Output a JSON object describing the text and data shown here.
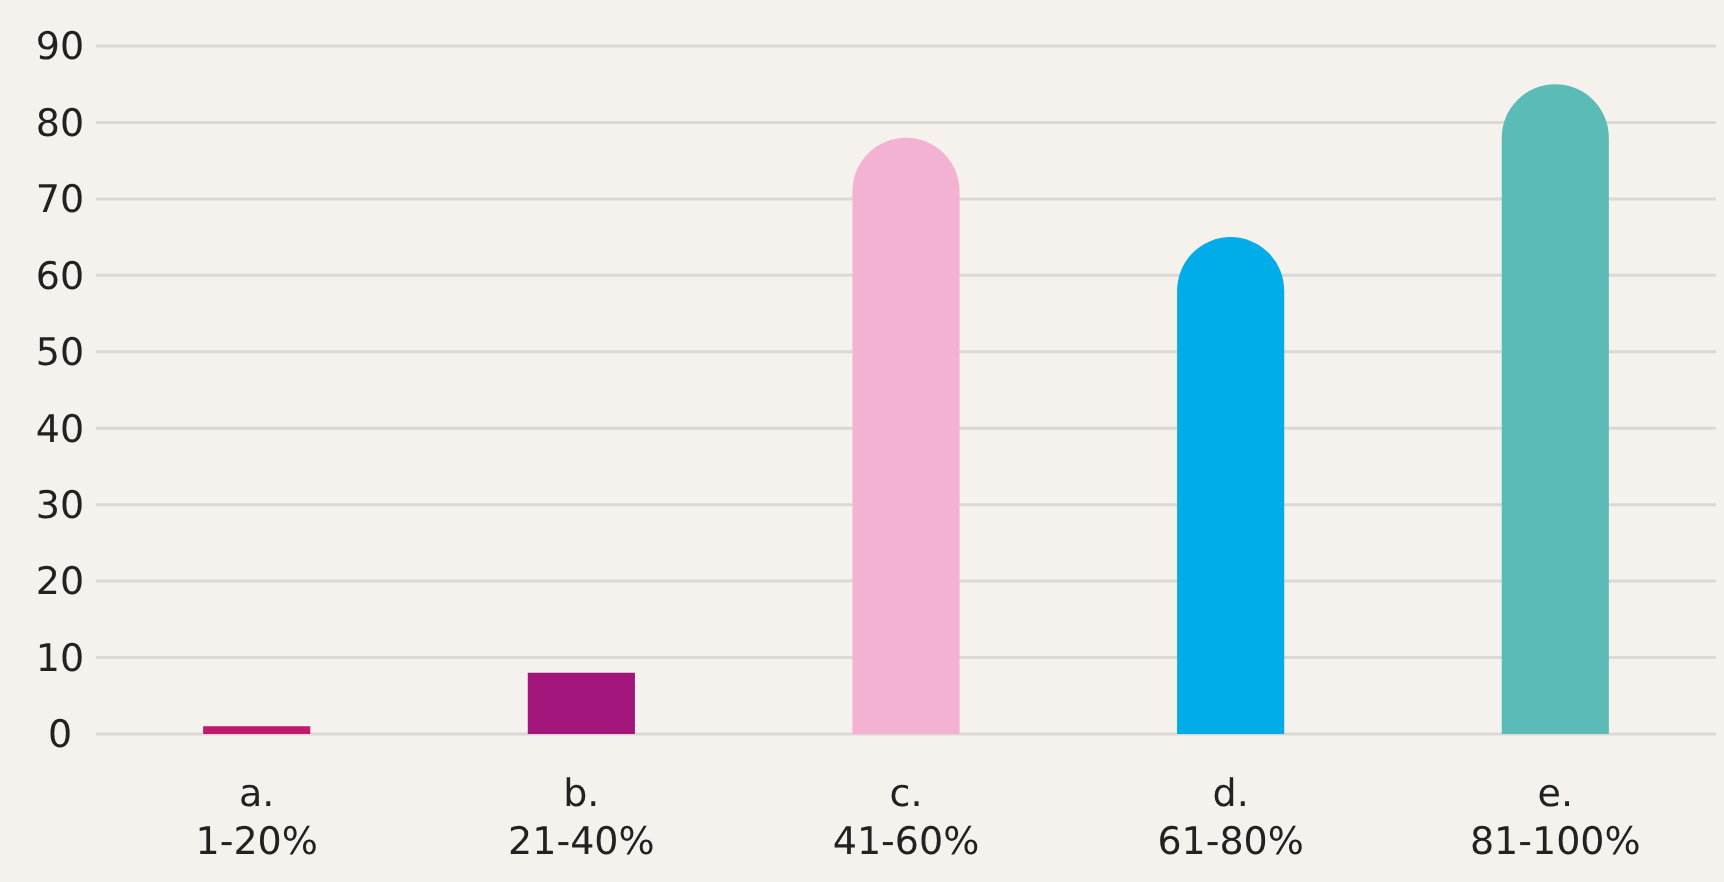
{
  "chart_data": {
    "type": "bar",
    "categories": [
      "a.\n1-20%",
      "b.\n21-40%",
      "c.\n41-60%",
      "d.\n61-80%",
      "e.\n81-100%"
    ],
    "values": [
      1,
      8,
      78,
      65,
      85
    ],
    "colors": [
      "#c2186e",
      "#a2157a",
      "#f4b2d3",
      "#00ade8",
      "#5bbcb7"
    ],
    "ylim": [
      0,
      90
    ],
    "yticks": [
      0,
      10,
      20,
      30,
      40,
      50,
      60,
      70,
      80,
      90
    ],
    "grid": "y"
  }
}
